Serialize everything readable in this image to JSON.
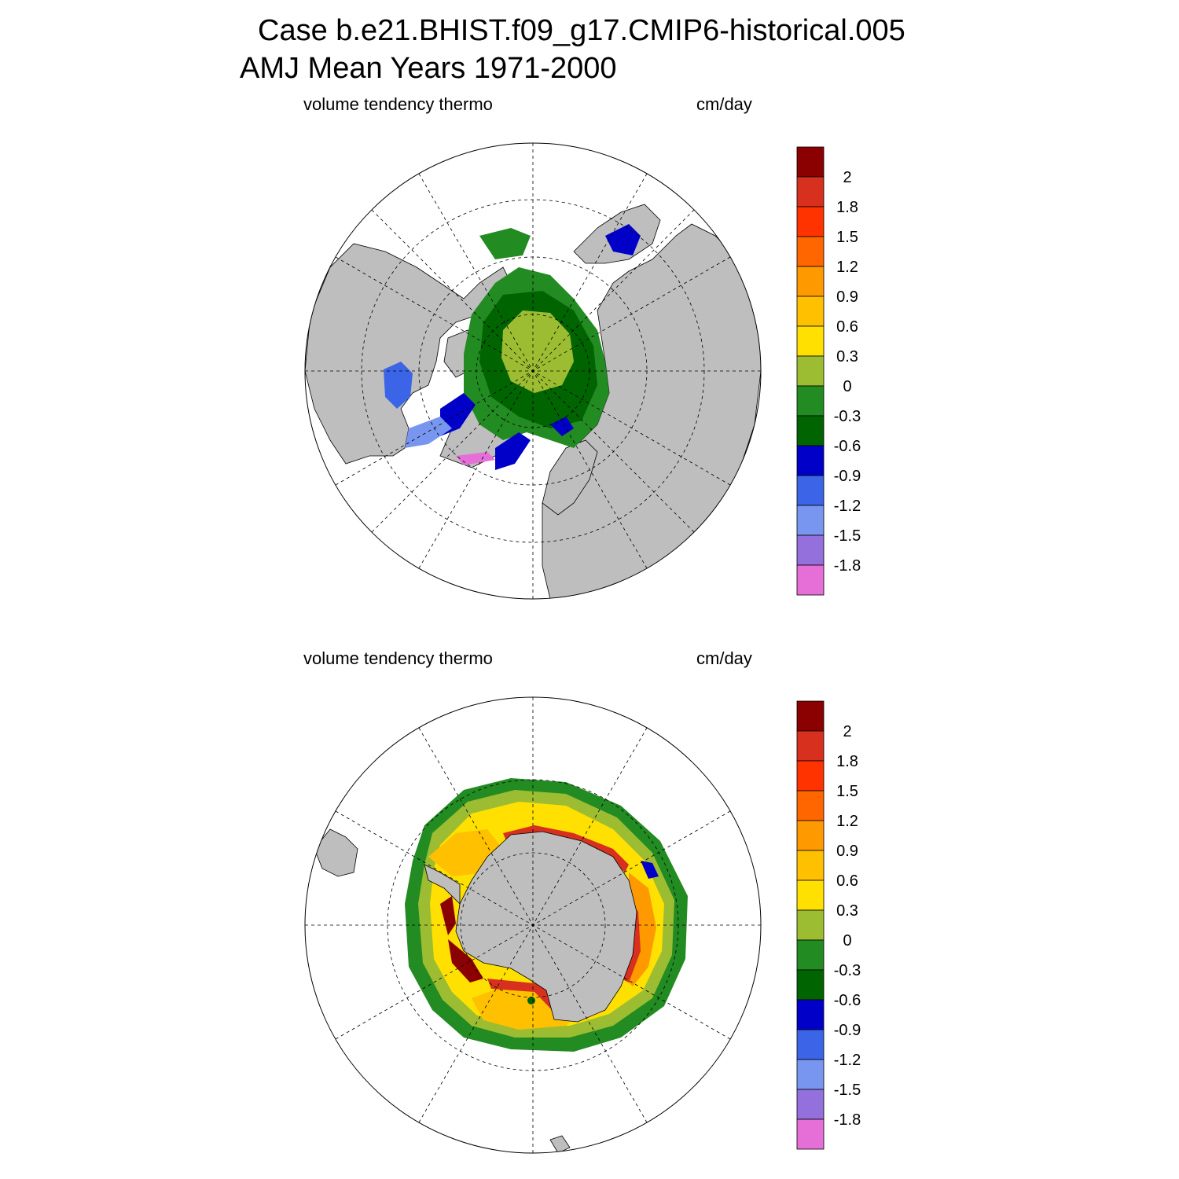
{
  "title": {
    "line1": "Case b.e21.BHIST.f09_g17.CMIP6-historical.005",
    "line2": "AMJ Mean   Years 1971-2000"
  },
  "panels": [
    {
      "id": "north",
      "hemisphere": "Arctic",
      "variable": "volume tendency thermo",
      "units": "cm/day"
    },
    {
      "id": "south",
      "hemisphere": "Antarctic",
      "variable": "volume tendency thermo",
      "units": "cm/day"
    }
  ],
  "colorbar": {
    "labels": [
      "2",
      "1.8",
      "1.5",
      "1.2",
      "0.9",
      "0.6",
      "0.3",
      "0",
      "-0.3",
      "-0.6",
      "-0.9",
      "-1.2",
      "-1.5",
      "-1.8"
    ],
    "colors": [
      "#8b0000",
      "#d7301f",
      "#ff3300",
      "#ff6600",
      "#ff9900",
      "#ffc000",
      "#ffe000",
      "#9cbd32",
      "#228b22",
      "#006400",
      "#0000c8",
      "#3c64e6",
      "#7896f0",
      "#9370db",
      "#e66ed7"
    ]
  },
  "map_colors": {
    "land": "#bebebe",
    "ocean": "#ffffff"
  }
}
